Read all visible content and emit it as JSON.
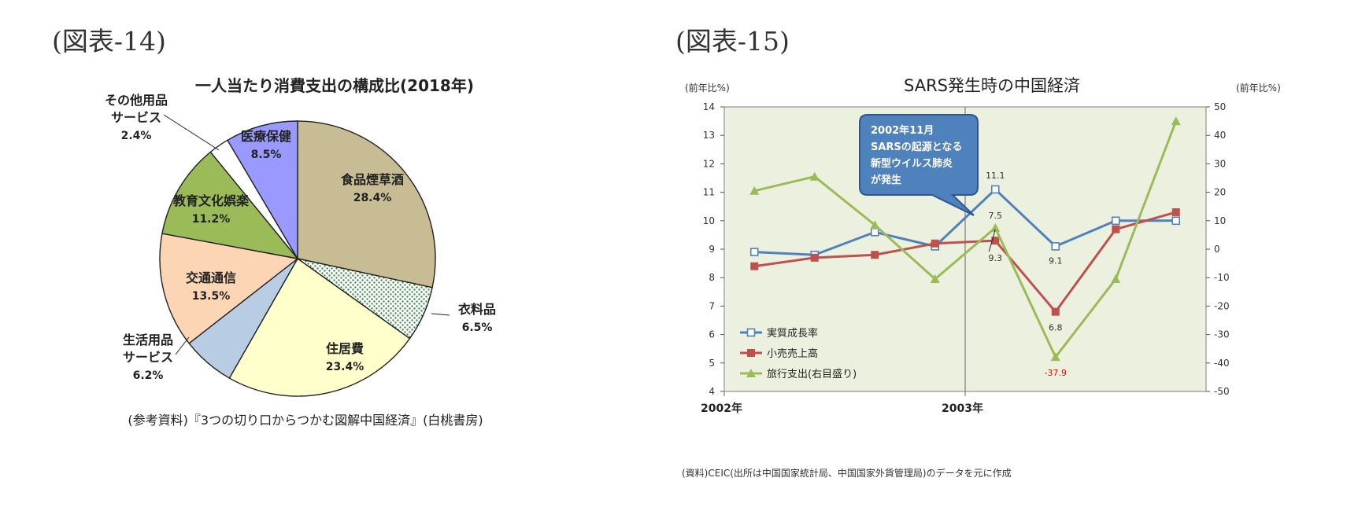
{
  "figures": {
    "left_label": "(図表-14)",
    "right_label": "(図表-15)"
  },
  "chart_data": [
    {
      "type": "pie",
      "title": "一人当たり消費支出の構成比(2018年)",
      "source": "(参考資料)『3つの切り口からつかむ図解中国経済』(白桃書房)",
      "slices": [
        {
          "label": "食品煙草酒",
          "value": 28.4,
          "value_label": "28.4%",
          "color": "#c8bc94",
          "pattern": "none"
        },
        {
          "label": "衣料品",
          "value": 6.5,
          "value_label": "6.5%",
          "color": "#ffffff",
          "pattern": "dots"
        },
        {
          "label": "住居費",
          "value": 23.4,
          "value_label": "23.4%",
          "color": "#ffffcc",
          "pattern": "none"
        },
        {
          "label": "生活用品\nサービス",
          "value": 6.2,
          "value_label": "6.2%",
          "color": "#b8cce4",
          "pattern": "none"
        },
        {
          "label": "交通通信",
          "value": 13.5,
          "value_label": "13.5%",
          "color": "#fcd5b4",
          "pattern": "none"
        },
        {
          "label": "教育文化娯楽",
          "value": 11.2,
          "value_label": "11.2%",
          "color": "#9bbb59",
          "pattern": "none"
        },
        {
          "label": "その他用品\nサービス",
          "value": 2.4,
          "value_label": "2.4%",
          "color": "#ffffff",
          "pattern": "none"
        },
        {
          "label": "医療保健",
          "value": 8.5,
          "value_label": "8.5%",
          "color": "#9999ff",
          "pattern": "none"
        }
      ]
    },
    {
      "type": "line",
      "title": "SARS発生時の中国経済",
      "ylabel_left": "(前年比%)",
      "ylabel_right": "(前年比%)",
      "ylim_left": [
        4,
        14
      ],
      "ylim_right": [
        -50,
        50
      ],
      "yticks_left": [
        4,
        5,
        6,
        7,
        8,
        9,
        10,
        11,
        12,
        13,
        14
      ],
      "yticks_right": [
        -50,
        -40,
        -30,
        -20,
        -10,
        0,
        10,
        20,
        30,
        40,
        50
      ],
      "x_labels": [
        "2002年",
        "2003年"
      ],
      "background": "#ebf1de",
      "x": [
        "2002Q1",
        "2002Q2",
        "2002Q3",
        "2002Q4",
        "2003Q1",
        "2003Q2",
        "2003Q3",
        "2003Q4"
      ],
      "series": [
        {
          "name": "実質成長率",
          "axis": "left",
          "color": "#4f81bd",
          "marker": "open-square",
          "values": [
            8.9,
            8.8,
            9.6,
            9.1,
            11.1,
            9.1,
            10.0,
            10.0
          ]
        },
        {
          "name": "小売売上高",
          "axis": "left",
          "color": "#c0504d",
          "marker": "filled-square",
          "values": [
            8.4,
            8.7,
            8.8,
            9.2,
            9.3,
            6.8,
            9.7,
            10.3
          ]
        },
        {
          "name": "旅行支出(右目盛り)",
          "axis": "right",
          "color": "#9bbb59",
          "marker": "triangle",
          "values": [
            20.5,
            25.5,
            8.5,
            -10.5,
            7.5,
            -37.9,
            -10.5,
            45.0
          ]
        }
      ],
      "annotations": [
        {
          "text": "11.1",
          "color": "#333333"
        },
        {
          "text": "7.5",
          "color": "#333333"
        },
        {
          "text": "9.3",
          "color": "#333333"
        },
        {
          "text": "9.1",
          "color": "#333333"
        },
        {
          "text": "6.8",
          "color": "#333333"
        },
        {
          "text": "-37.9",
          "color": "#ff0000"
        }
      ],
      "callout": {
        "lines": [
          "2002年11月",
          "SARSの起源となる",
          "新型ウイルス肺炎",
          "が発生"
        ],
        "fill": "#4f81bd"
      },
      "source": "(資料)CEIC(出所は中国国家統計局、中国国家外貨管理局)のデータを元に作成"
    }
  ]
}
